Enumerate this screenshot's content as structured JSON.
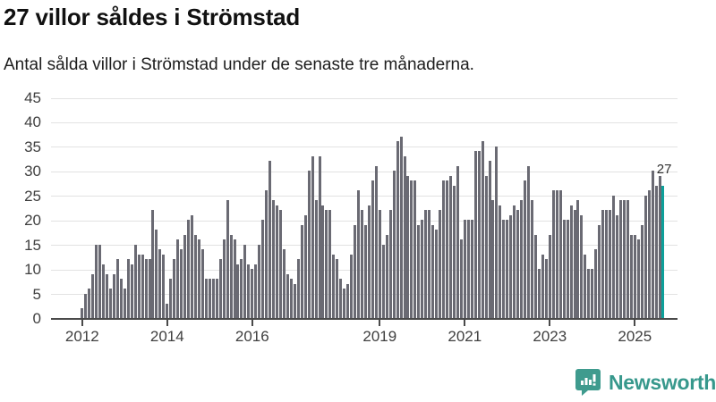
{
  "header": {
    "title": "27 villor såldes i Strömstad",
    "subtitle": "Antal sålda villor i Strömstad under de senaste tre månaderna."
  },
  "chart_data": {
    "type": "bar",
    "title": "27 villor såldes i Strömstad",
    "subtitle": "Antal sålda villor i Strömstad under de senaste tre månaderna.",
    "xlabel": "",
    "ylabel": "",
    "ylim": [
      0,
      45
    ],
    "grid": true,
    "y_ticks": [
      0,
      5,
      10,
      15,
      20,
      25,
      30,
      35,
      40,
      45
    ],
    "x_ticks": [
      {
        "label": "2012",
        "year": 2012
      },
      {
        "label": "2014",
        "year": 2014
      },
      {
        "label": "2016",
        "year": 2016
      },
      {
        "label": "2019",
        "year": 2019
      },
      {
        "label": "2021",
        "year": 2021
      },
      {
        "label": "2023",
        "year": 2023
      },
      {
        "label": "2025",
        "year": 2025
      }
    ],
    "series_start": {
      "year": 2012,
      "month": 1
    },
    "frequency": "monthly",
    "values": [
      2,
      5,
      6,
      9,
      15,
      15,
      11,
      9,
      6,
      9,
      12,
      8,
      6,
      12,
      11,
      15,
      13,
      13,
      12,
      12,
      22,
      18,
      14,
      13,
      3,
      8,
      12,
      16,
      14,
      17,
      20,
      21,
      17,
      16,
      14,
      8,
      8,
      8,
      8,
      12,
      16,
      24,
      17,
      16,
      11,
      12,
      15,
      11,
      10,
      11,
      15,
      20,
      26,
      32,
      24,
      23,
      22,
      14,
      9,
      8,
      7,
      12,
      19,
      21,
      30,
      33,
      24,
      33,
      23,
      22,
      22,
      13,
      12,
      8,
      6,
      7,
      13,
      19,
      26,
      22,
      19,
      23,
      28,
      31,
      22,
      15,
      17,
      22,
      30,
      36,
      37,
      33,
      29,
      28,
      28,
      19,
      20,
      22,
      22,
      19,
      18,
      22,
      28,
      28,
      29,
      27,
      31,
      16,
      20,
      20,
      20,
      34,
      34,
      36,
      29,
      32,
      24,
      35,
      23,
      20,
      20,
      21,
      23,
      22,
      24,
      28,
      31,
      24,
      17,
      10,
      13,
      12,
      17,
      26,
      26,
      26,
      20,
      20,
      23,
      22,
      24,
      21,
      13,
      10,
      10,
      14,
      19,
      22,
      22,
      22,
      25,
      21,
      24,
      24,
      24,
      17,
      17,
      16,
      19,
      25,
      26,
      30,
      27,
      29,
      27
    ],
    "bar_color": "#6a6a73",
    "highlight": {
      "index_from_end": 1,
      "value": 27,
      "label": "27",
      "color": "#0da09a"
    },
    "legend": null
  },
  "footer": {
    "brand": "Newsworthy",
    "brand_color": "#37988c",
    "logo_icon": "bar-chart-speech-bubble-icon"
  }
}
